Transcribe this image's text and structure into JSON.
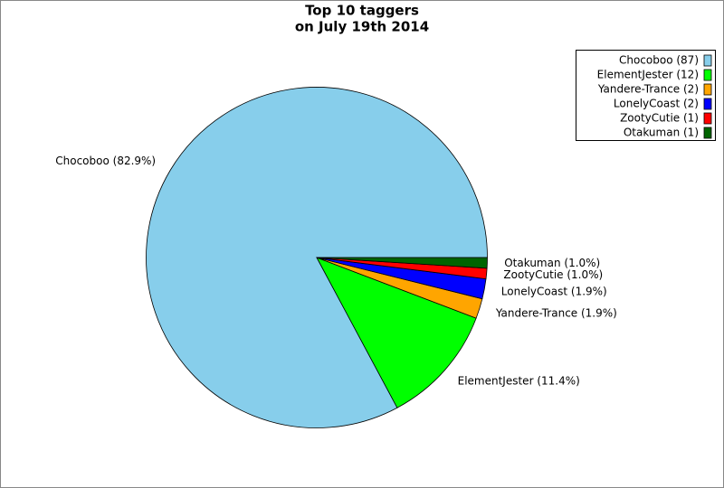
{
  "chart_data": {
    "type": "pie",
    "title": [
      "Top 10 taggers",
      "on July 19th 2014"
    ],
    "categories": [
      "Chocoboo (87)",
      "ElementJester (12)",
      "Yandere-Trance (2)",
      "LonelyCoast (2)",
      "ZootyCutie (1)",
      "Otakuman (1)"
    ],
    "values": [
      82.9,
      11.4,
      1.9,
      1.9,
      1.0,
      1.0
    ],
    "value_labels": [
      "Chocoboo (82.9%)",
      "ElementJester (11.4%)",
      "Yandere-Trance (1.9%)",
      "LonelyCoast (1.9%)",
      "ZootyCutie (1.0%)",
      "Otakuman (1.0%)"
    ],
    "colors": [
      "#87ceeb",
      "#00ff00",
      "#ffa500",
      "#0000ff",
      "#ff0000",
      "#006400"
    ],
    "legend": "upper right"
  }
}
